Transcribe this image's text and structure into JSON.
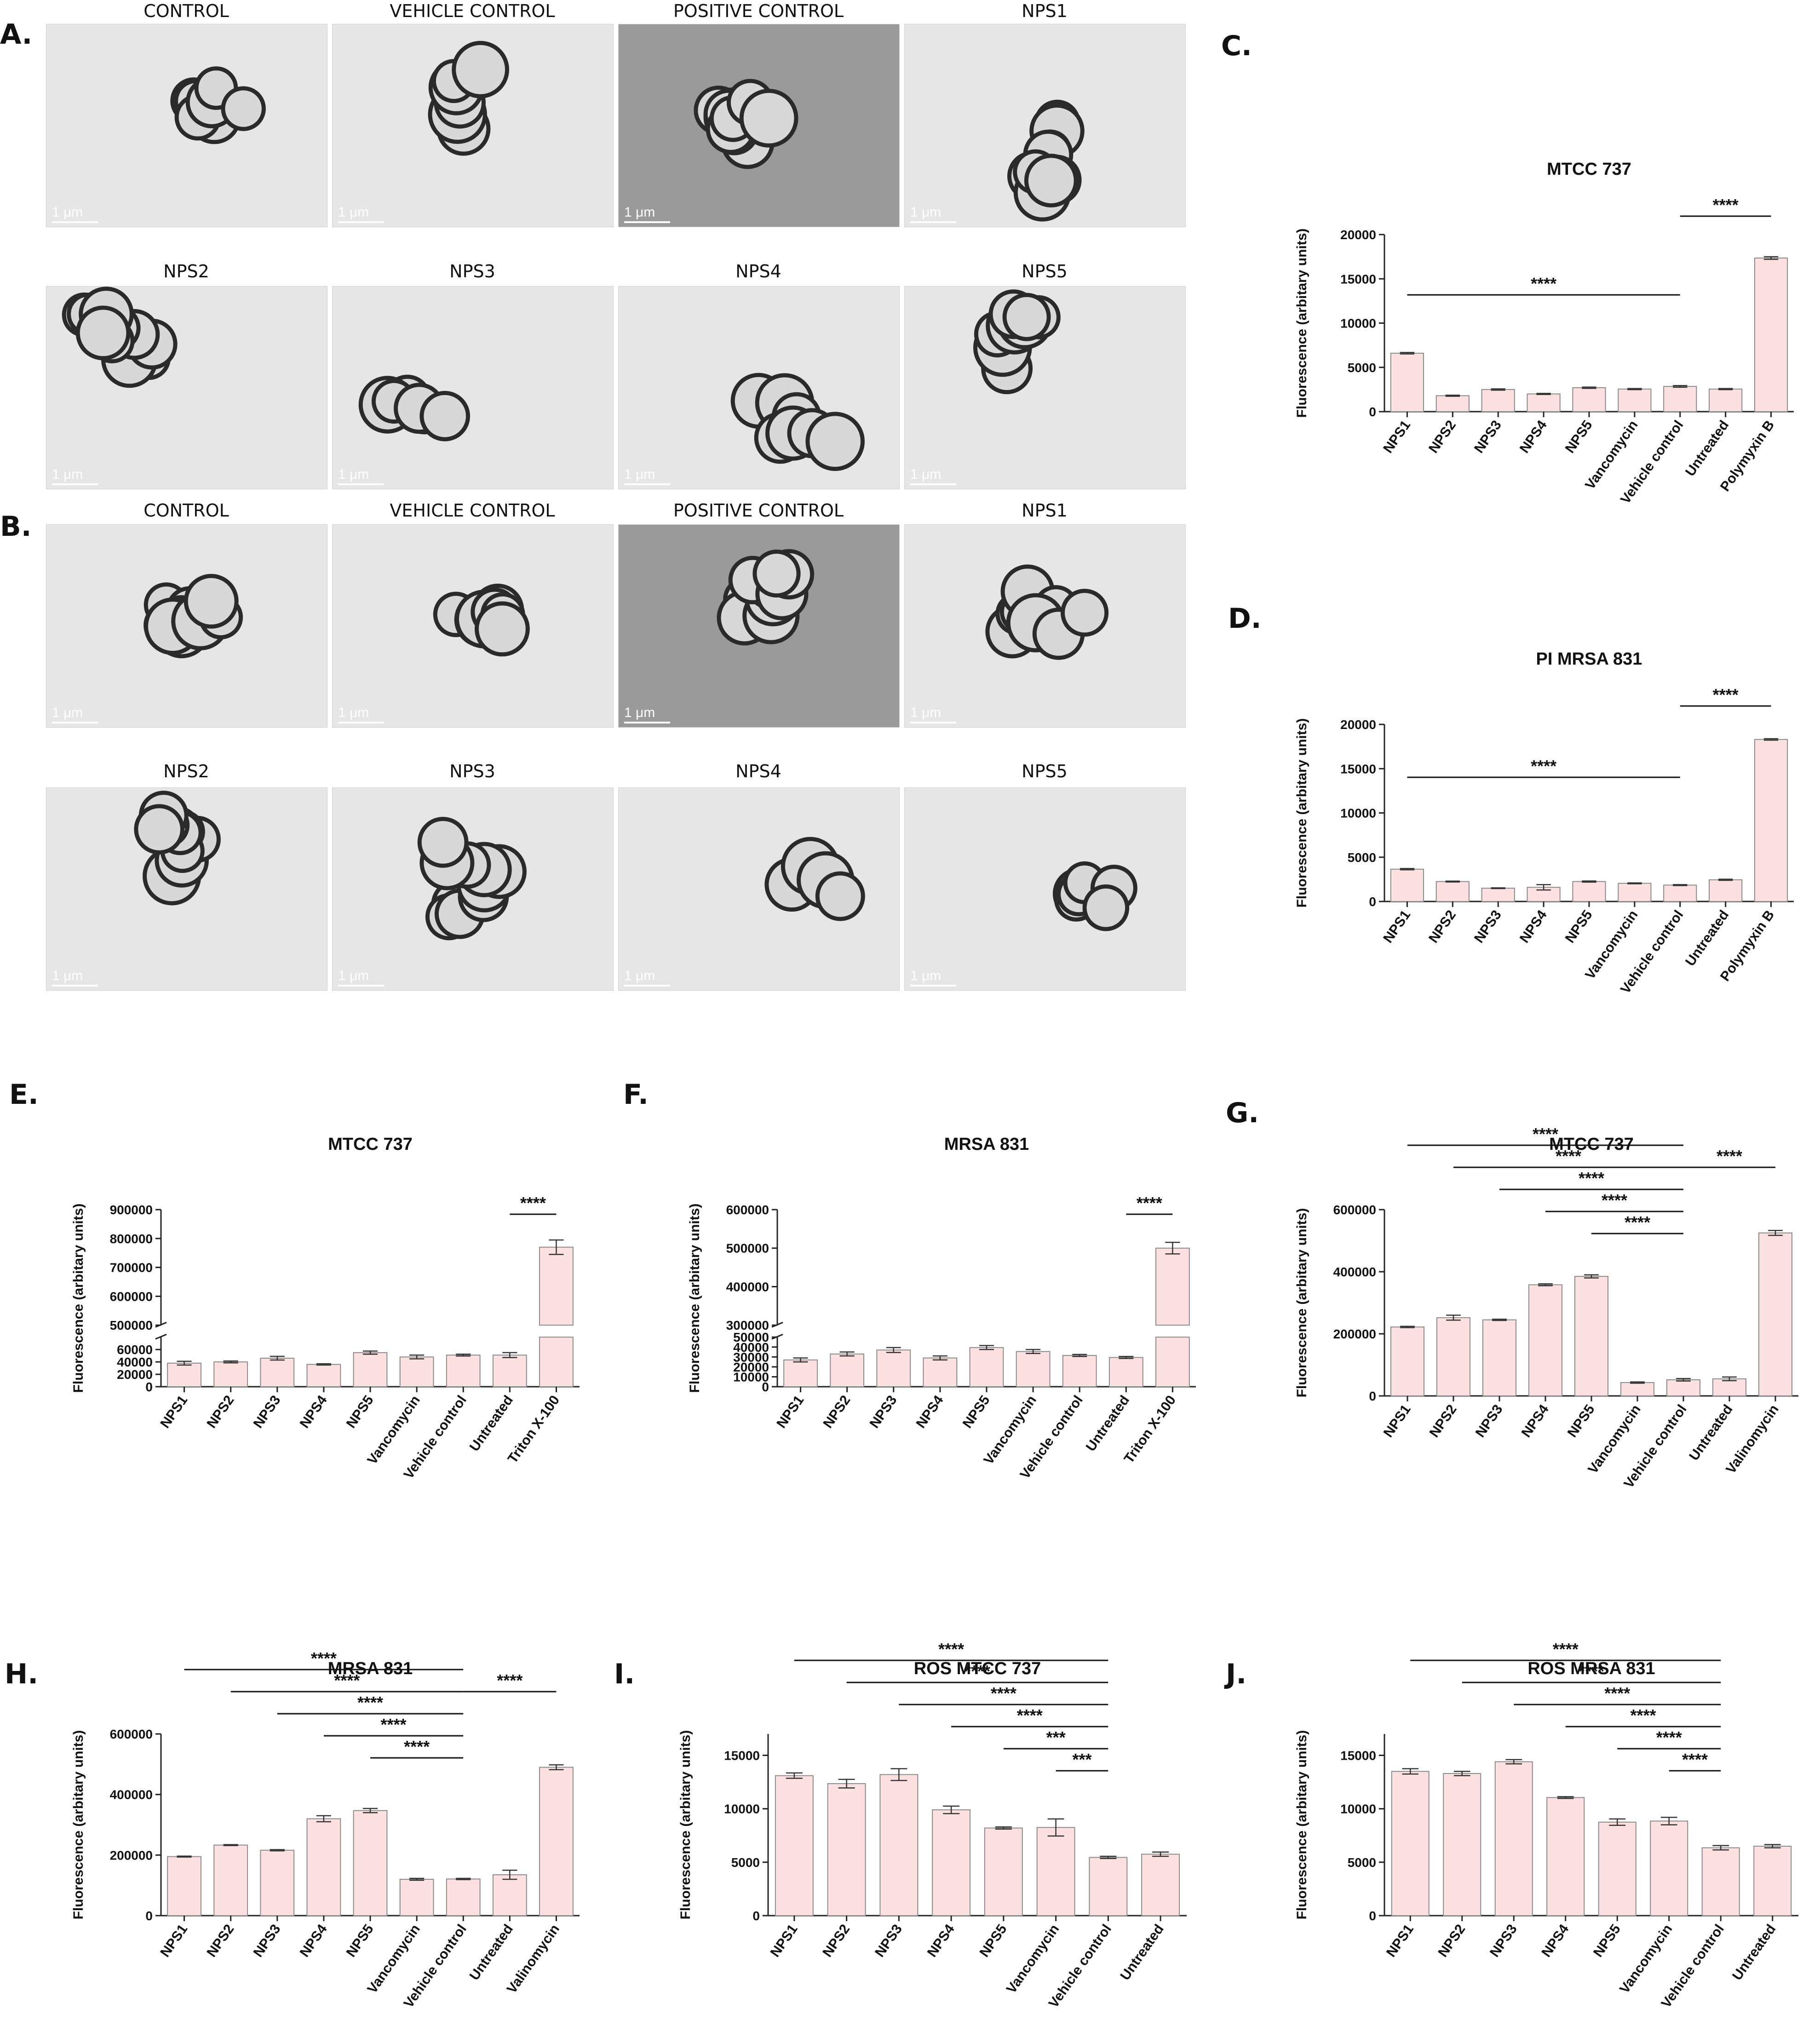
{
  "figure_labels": [
    "A.",
    "B.",
    "C.",
    "D.",
    "E.",
    "F.",
    "G.",
    "H.",
    "I.",
    "J."
  ],
  "tem_panels": {
    "A": {
      "row1": [
        "CONTROL",
        "VEHICLE CONTROL",
        "POSITIVE CONTROL",
        "NPS1"
      ],
      "row2": [
        "NPS2",
        "NPS3",
        "NPS4",
        "NPS5"
      ]
    },
    "B": {
      "row1": [
        "CONTROL",
        "VEHICLE CONTROL",
        "POSITIVE CONTROL",
        "NPS1"
      ],
      "row2": [
        "NPS2",
        "NPS3",
        "NPS4",
        "NPS5"
      ]
    },
    "scale_bar": "1 μm"
  },
  "colors": {
    "bar_fill": "#fde1e1",
    "bar_stroke": "#8a8a8a",
    "axis": "#222222",
    "tem_bg": "#e6e6e6",
    "tem_cell": "#2a2a2a"
  },
  "chart_data": [
    {
      "id": "C",
      "type": "bar",
      "title": "MTCC 737",
      "ylabel": "Fluorescence (arbitary units)",
      "categories": [
        "NPS1",
        "NPS2",
        "NPS3",
        "NPS4",
        "NPS5",
        "Vancomycin",
        "Vehicle control",
        "Untreated",
        "Polymyxin B"
      ],
      "values": [
        6600,
        1800,
        2500,
        2000,
        2700,
        2550,
        2850,
        2550,
        17350
      ],
      "errors": [
        80,
        60,
        70,
        60,
        70,
        60,
        90,
        60,
        150
      ],
      "ylim": [
        0,
        20000
      ],
      "yticks": [
        0,
        5000,
        10000,
        15000,
        20000
      ],
      "significance": [
        {
          "from": "NPS1",
          "to": "Vehicle control",
          "label": "****"
        },
        {
          "from": "Vehicle control",
          "to": "Polymyxin B",
          "label": "****"
        }
      ]
    },
    {
      "id": "D",
      "type": "bar",
      "title": "PI MRSA 831",
      "ylabel": "Fluorescence (arbitary units)",
      "categories": [
        "NPS1",
        "NPS2",
        "NPS3",
        "NPS4",
        "NPS5",
        "Vancomycin",
        "Vehicle control",
        "Untreated",
        "Polymyxin B"
      ],
      "values": [
        3650,
        2250,
        1500,
        1600,
        2250,
        2050,
        1850,
        2450,
        18300
      ],
      "errors": [
        70,
        50,
        40,
        300,
        60,
        50,
        50,
        60,
        80
      ],
      "ylim": [
        0,
        20000
      ],
      "yticks": [
        0,
        5000,
        10000,
        15000,
        20000
      ],
      "significance": [
        {
          "from": "NPS1",
          "to": "Vehicle control",
          "label": "****"
        },
        {
          "from": "Vehicle control",
          "to": "Polymyxin B",
          "label": "****"
        }
      ]
    },
    {
      "id": "E",
      "type": "bar",
      "title": "MTCC 737",
      "ylabel": "Fluorescence (arbitary units)",
      "categories": [
        "NPS1",
        "NPS2",
        "NPS3",
        "NPS4",
        "NPS5",
        "Vancomycin",
        "Vehicle control",
        "Untreated",
        "Triton X-100"
      ],
      "values": [
        38000,
        40000,
        46000,
        36000,
        55000,
        48000,
        51000,
        51000,
        770000
      ],
      "errors": [
        3000,
        1500,
        3000,
        1000,
        2500,
        3000,
        1500,
        4000,
        25000
      ],
      "broken_axis": {
        "lower": [
          0,
          80000
        ],
        "lower_ticks": [
          0,
          20000,
          40000,
          60000
        ],
        "upper": [
          500000,
          900000
        ],
        "upper_ticks": [
          500000,
          600000,
          700000,
          800000,
          900000
        ]
      },
      "significance": [
        {
          "from": "Untreated",
          "to": "Triton X-100",
          "label": "****"
        }
      ]
    },
    {
      "id": "F",
      "type": "bar",
      "title": "MRSA 831",
      "ylabel": "Fluorescence (arbitary units)",
      "categories": [
        "NPS1",
        "NPS2",
        "NPS3",
        "NPS4",
        "NPS5",
        "Vancomycin",
        "Vehicle control",
        "Untreated",
        "Triton X-100"
      ],
      "values": [
        27000,
        33000,
        37000,
        29000,
        39500,
        35500,
        31500,
        29500,
        500000
      ],
      "errors": [
        2000,
        2000,
        2500,
        2000,
        2000,
        2000,
        1000,
        1000,
        15000
      ],
      "broken_axis": {
        "lower": [
          0,
          50000
        ],
        "lower_ticks": [
          0,
          10000,
          20000,
          30000,
          40000,
          50000
        ],
        "upper": [
          300000,
          600000
        ],
        "upper_ticks": [
          300000,
          400000,
          500000,
          600000
        ]
      },
      "significance": [
        {
          "from": "Untreated",
          "to": "Triton X-100",
          "label": "****"
        }
      ]
    },
    {
      "id": "G",
      "type": "bar",
      "title": "MTCC 737",
      "ylabel": "Fluorescence (arbitary units)",
      "categories": [
        "NPS1",
        "NPS2",
        "NPS3",
        "NPS4",
        "NPS5",
        "Vancomycin",
        "Vehicle control",
        "Untreated",
        "Valinomycin"
      ],
      "values": [
        222000,
        252000,
        245000,
        358000,
        385000,
        43000,
        52000,
        55000,
        525000
      ],
      "errors": [
        2000,
        8000,
        2000,
        3000,
        5000,
        2000,
        4000,
        6000,
        8000
      ],
      "ylim": [
        0,
        600000
      ],
      "yticks": [
        0,
        200000,
        400000,
        600000
      ],
      "significance": [
        {
          "from": "NPS1",
          "to": "Vehicle control",
          "label": "****"
        },
        {
          "from": "NPS2",
          "to": "Vehicle control",
          "label": "****"
        },
        {
          "from": "NPS3",
          "to": "Vehicle control",
          "label": "****"
        },
        {
          "from": "NPS4",
          "to": "Vehicle control",
          "label": "****"
        },
        {
          "from": "NPS5",
          "to": "Vehicle control",
          "label": "****"
        },
        {
          "from": "Vehicle control",
          "to": "Valinomycin",
          "label": "****",
          "right": true
        }
      ]
    },
    {
      "id": "H",
      "type": "bar",
      "title": "MRSA 831",
      "ylabel": "Fluorescence (arbitary units)",
      "categories": [
        "NPS1",
        "NPS2",
        "NPS3",
        "NPS4",
        "NPS5",
        "Vancomycin",
        "Vehicle control",
        "Untreated",
        "Valinomycin"
      ],
      "values": [
        195000,
        233000,
        216000,
        320000,
        347000,
        120000,
        121000,
        135000,
        490000
      ],
      "errors": [
        1500,
        1500,
        2000,
        10000,
        7000,
        3000,
        2000,
        15000,
        8000
      ],
      "ylim": [
        0,
        600000
      ],
      "yticks": [
        0,
        200000,
        400000,
        600000
      ],
      "significance": [
        {
          "from": "NPS1",
          "to": "Vehicle control",
          "label": "****"
        },
        {
          "from": "NPS2",
          "to": "Vehicle control",
          "label": "****"
        },
        {
          "from": "NPS3",
          "to": "Vehicle control",
          "label": "****"
        },
        {
          "from": "NPS4",
          "to": "Vehicle control",
          "label": "****"
        },
        {
          "from": "NPS5",
          "to": "Vehicle control",
          "label": "****"
        },
        {
          "from": "Vehicle control",
          "to": "Valinomycin",
          "label": "****",
          "right": true
        }
      ]
    },
    {
      "id": "I",
      "type": "bar",
      "title": "ROS MTCC 737",
      "ylabel": "Fluorescence (arbitary units)",
      "categories": [
        "NPS1",
        "NPS2",
        "NPS3",
        "NPS4",
        "NPS5",
        "Vancomycin",
        "Vehicle control",
        "Untreated"
      ],
      "values": [
        13100,
        12350,
        13200,
        9900,
        8200,
        8250,
        5450,
        5750
      ],
      "errors": [
        250,
        400,
        550,
        350,
        100,
        800,
        100,
        200
      ],
      "ylim": [
        0,
        17000
      ],
      "yticks": [
        0,
        5000,
        10000,
        15000
      ],
      "significance": [
        {
          "from": "NPS1",
          "to": "Vehicle control",
          "label": "****"
        },
        {
          "from": "NPS2",
          "to": "Vehicle control",
          "label": "****"
        },
        {
          "from": "NPS3",
          "to": "Vehicle control",
          "label": "****"
        },
        {
          "from": "NPS4",
          "to": "Vehicle control",
          "label": "****"
        },
        {
          "from": "NPS5",
          "to": "Vehicle control",
          "label": "***"
        },
        {
          "from": "Vancomycin",
          "to": "Vehicle control",
          "label": "***"
        }
      ]
    },
    {
      "id": "J",
      "type": "bar",
      "title": "ROS MRSA 831",
      "ylabel": "Fluorescence (arbitary units)",
      "categories": [
        "NPS1",
        "NPS2",
        "NPS3",
        "NPS4",
        "NPS5",
        "Vancomycin",
        "Vehicle control",
        "Untreated"
      ],
      "values": [
        13500,
        13300,
        14400,
        11050,
        8750,
        8850,
        6350,
        6500
      ],
      "errors": [
        250,
        200,
        200,
        80,
        300,
        350,
        200,
        150
      ],
      "ylim": [
        0,
        17000
      ],
      "yticks": [
        0,
        5000,
        10000,
        15000
      ],
      "significance": [
        {
          "from": "NPS1",
          "to": "Vehicle control",
          "label": "****"
        },
        {
          "from": "NPS2",
          "to": "Vehicle control",
          "label": "****"
        },
        {
          "from": "NPS3",
          "to": "Vehicle control",
          "label": "****"
        },
        {
          "from": "NPS4",
          "to": "Vehicle control",
          "label": "****"
        },
        {
          "from": "NPS5",
          "to": "Vehicle control",
          "label": "****"
        },
        {
          "from": "Vancomycin",
          "to": "Vehicle control",
          "label": "****"
        }
      ]
    }
  ]
}
